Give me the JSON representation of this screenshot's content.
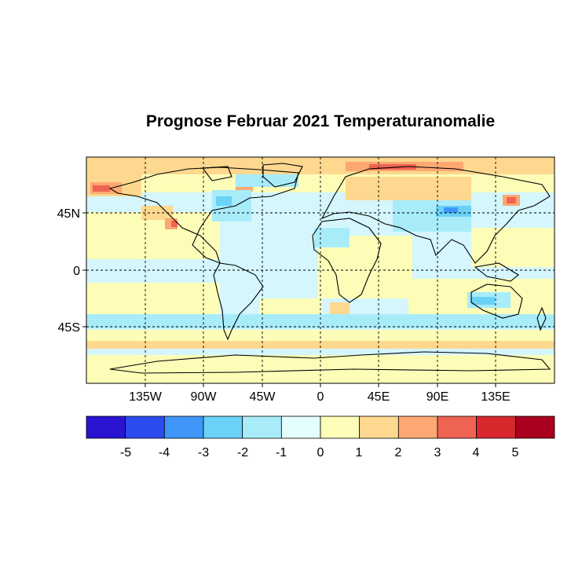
{
  "title": "Prognose Februar 2021 Temperaturanomalie",
  "lon_labels": [
    "135W",
    "90W",
    "45W",
    "0",
    "45E",
    "90E",
    "135E"
  ],
  "lat_labels": [
    "45N",
    "0",
    "45S"
  ],
  "colorbar": {
    "tick_labels": [
      "-5",
      "-4",
      "-3",
      "-2",
      "-1",
      "0",
      "1",
      "2",
      "3",
      "4",
      "5"
    ],
    "colors": [
      "#2a14d2",
      "#2c4cf0",
      "#3f96f8",
      "#6ad2f6",
      "#a8ecfa",
      "#e4fefe",
      "#fdfdb8",
      "#fdd88e",
      "#fda872",
      "#ef6353",
      "#d8282e",
      "#a8001e"
    ]
  },
  "colors": {
    "background_cold": "#d4f6fc",
    "background_warm": "#fdfdb8"
  }
}
